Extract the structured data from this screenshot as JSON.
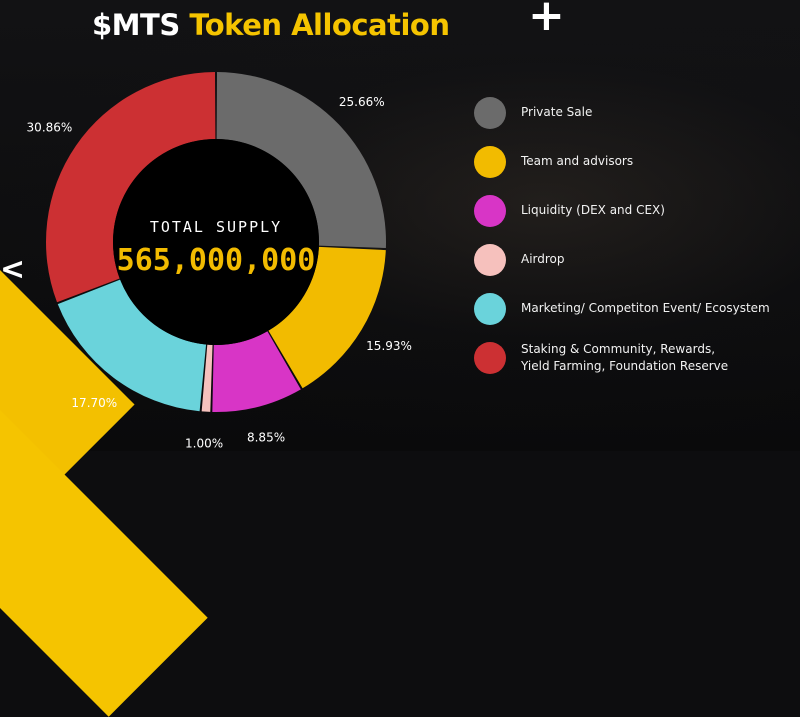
{
  "title": {
    "part1": "$MTS",
    "part2": "Token Allocation"
  },
  "center": {
    "label": "TOTAL SUPPLY",
    "value": "565,000,000"
  },
  "decor": {
    "plus_glyph": "+",
    "chevron_glyph": "<"
  },
  "colors": {
    "title_accent": "#f5c400",
    "private_sale": "#6b6b6b",
    "team": "#f2bb00",
    "liquidity": "#d835c6",
    "airdrop": "#f6c1bd",
    "marketing": "#6ad3db",
    "staking": "#cc3033"
  },
  "chart_data": {
    "type": "pie",
    "title": "$MTS Token Allocation",
    "slices": [
      {
        "name": "Private Sale",
        "value": 25.66,
        "label": "25.66%",
        "color": "#6b6b6b"
      },
      {
        "name": "Team and advisors",
        "value": 15.93,
        "label": "15.93%",
        "color": "#f2bb00"
      },
      {
        "name": "Liquidity (DEX and CEX)",
        "value": 8.85,
        "label": "8.85%",
        "color": "#d835c6"
      },
      {
        "name": "Airdrop",
        "value": 1.0,
        "label": "1.00%",
        "color": "#f6c1bd"
      },
      {
        "name": "Marketing/ Competiton Event/ Ecosystem",
        "value": 17.7,
        "label": "17.70%",
        "color": "#6ad3db"
      },
      {
        "name": "Staking & Community, Rewards,\nYield Farming, Foundation Reserve",
        "value": 30.86,
        "label": "30.86%",
        "color": "#cc3033"
      }
    ],
    "legend_position": "right",
    "donut": true
  }
}
